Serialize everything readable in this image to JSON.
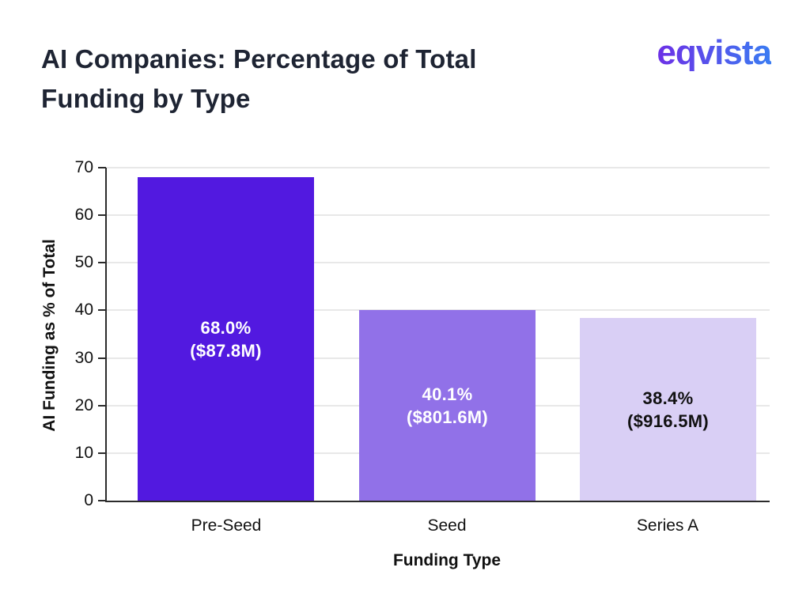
{
  "header": {
    "title_lines": [
      "AI Companies: Percentage of Total",
      "Funding by Type"
    ],
    "title_full": "AI Companies: Percentage of Total Funding by Type",
    "logo_text": "eqvista"
  },
  "chart_data": {
    "type": "bar",
    "title": "AI Companies: Percentage of Total Funding by Type",
    "categories": [
      "Pre-Seed",
      "Seed",
      "Series A"
    ],
    "values": [
      68.0,
      40.1,
      38.4
    ],
    "value_unit": "percent of total funding",
    "funding_amounts_musd": [
      87.8,
      801.6,
      916.5
    ],
    "bar_labels": [
      [
        "68.0%",
        "($87.8M)"
      ],
      [
        "40.1%",
        "($801.6M)"
      ],
      [
        "38.4%",
        "($916.5M)"
      ]
    ],
    "bar_colors": [
      "#5219e0",
      "#9171e8",
      "#d9cff5"
    ],
    "bar_label_colors": [
      "#ffffff",
      "#ffffff",
      "#111111"
    ],
    "xlabel": "Funding Type",
    "ylabel": "AI Funding as % of Total",
    "ylim": [
      0,
      70
    ],
    "yticks": [
      0,
      10,
      20,
      30,
      40,
      50,
      60,
      70
    ],
    "grid": "horizontal",
    "legend": "none"
  },
  "colors": {
    "background": "#ffffff",
    "title_text": "#1e2433",
    "logo_gradient_start": "#6d30e6",
    "logo_gradient_end": "#3a7cf2",
    "axis_line": "#2b2b2b",
    "gridline": "#e8e8e8",
    "tick_text": "#111111"
  }
}
